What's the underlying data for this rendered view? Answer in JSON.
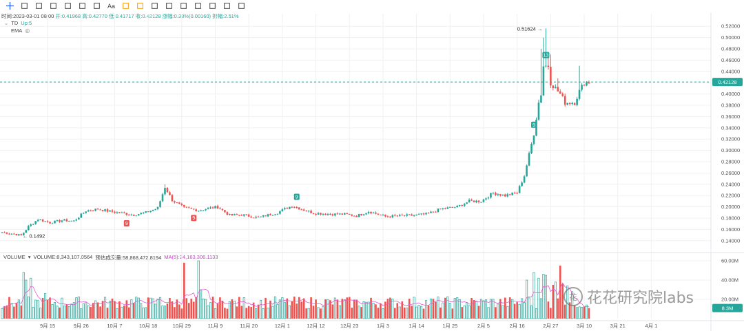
{
  "toolbar": {
    "icons": [
      "crosshair-icon",
      "trendline-icon",
      "parallel-channel-icon",
      "rectangle-icon",
      "fib-lines-icon",
      "pattern-icon",
      "ruler-icon",
      "text-icon",
      "brush-icon",
      "brush2-icon",
      "pencil-icon",
      "magnet-icon",
      "stats-icon",
      "lock-icon",
      "copy-icon",
      "clear-icon",
      "trash-icon"
    ]
  },
  "ohlc": {
    "time_label": "时间:2023-03-01 08:00",
    "open": "开:0.41968",
    "high": "高:0.42770",
    "low": "低:0.41717",
    "close": "收:0.42128",
    "change": "涨幅:0.38%(0.00160)",
    "amplitude": "振幅:2.51%"
  },
  "indicators": {
    "td_label": "TD",
    "td_value": "Up:5",
    "ema_label": "EMA"
  },
  "volume_legend": {
    "label": "VOLUME",
    "value": "VOLUME:8,343,107.0564",
    "estimate": "预估成交量:58,868,472.8194",
    "ma": "MA(5):24,163,306.1133"
  },
  "watermark": {
    "text": "花花研究院labs",
    "logo": "花"
  },
  "colors": {
    "up": "#26a69a",
    "down": "#ef5350",
    "grid": "#f0f0f0",
    "ma": "#e05bd0",
    "price_line": "#26a69a"
  },
  "chart_data": [
    {
      "type": "candlestick",
      "title": "",
      "ylim": [
        0.13,
        0.53
      ],
      "y_ticks": [
        0.14,
        0.16,
        0.18,
        0.2,
        0.22,
        0.24,
        0.26,
        0.28,
        0.3,
        0.32,
        0.34,
        0.36,
        0.38,
        0.4,
        0.42,
        0.44,
        0.46,
        0.48,
        0.5,
        0.52
      ],
      "y_tick_labels": [
        "0.14000",
        "0.16000",
        "0.18000",
        "0.20000",
        "0.22000",
        "0.24000",
        "0.26000",
        "0.28000",
        "0.30000",
        "0.32000",
        "0.34000",
        "0.36000",
        "0.38000",
        "0.40000",
        "0.42000",
        "0.44000",
        "0.46000",
        "0.48000",
        "0.50000",
        "0.52000"
      ],
      "x_tick_labels": [
        "9月 15",
        "9月 26",
        "10月 7",
        "10月 18",
        "10月 29",
        "11月 9",
        "11月 20",
        "12月 1",
        "12月 12",
        "12月 23",
        "1月 3",
        "1月 14",
        "1月 25",
        "2月 5",
        "2月 16",
        "2月 27",
        "3月 10",
        "3月 21",
        "4月 1"
      ],
      "last_price": 0.42128,
      "last_price_label": "0.42128",
      "high_annotation": "0.51624",
      "high_value": 0.51624,
      "low_annotation": "0.1492",
      "low_value": 0.1492,
      "td_markers": [
        {
          "label": "9",
          "day": 52,
          "side": "below",
          "dir": "down"
        },
        {
          "label": "9",
          "day": 80,
          "side": "below",
          "dir": "down"
        },
        {
          "label": "9",
          "day": 123,
          "side": "above",
          "dir": "up"
        },
        {
          "label": "9",
          "day": 222,
          "side": "above",
          "dir": "up"
        },
        {
          "label": "13",
          "day": 227,
          "side": "above",
          "dir": "up"
        }
      ],
      "anchors": [
        [
          0,
          0.155
        ],
        [
          5,
          0.152
        ],
        [
          8,
          0.1492
        ],
        [
          11,
          0.165
        ],
        [
          15,
          0.178
        ],
        [
          20,
          0.172
        ],
        [
          25,
          0.176
        ],
        [
          30,
          0.175
        ],
        [
          35,
          0.193
        ],
        [
          40,
          0.196
        ],
        [
          45,
          0.192
        ],
        [
          50,
          0.189
        ],
        [
          55,
          0.186
        ],
        [
          60,
          0.19
        ],
        [
          65,
          0.198
        ],
        [
          68,
          0.235
        ],
        [
          71,
          0.212
        ],
        [
          76,
          0.198
        ],
        [
          82,
          0.194
        ],
        [
          90,
          0.2
        ],
        [
          95,
          0.185
        ],
        [
          100,
          0.186
        ],
        [
          107,
          0.181
        ],
        [
          115,
          0.19
        ],
        [
          121,
          0.202
        ],
        [
          125,
          0.196
        ],
        [
          130,
          0.189
        ],
        [
          138,
          0.187
        ],
        [
          143,
          0.187
        ],
        [
          148,
          0.184
        ],
        [
          153,
          0.192
        ],
        [
          160,
          0.183
        ],
        [
          165,
          0.184
        ],
        [
          172,
          0.185
        ],
        [
          177,
          0.187
        ],
        [
          183,
          0.196
        ],
        [
          190,
          0.2
        ],
        [
          195,
          0.21
        ],
        [
          200,
          0.21
        ],
        [
          205,
          0.225
        ],
        [
          210,
          0.22
        ],
        [
          215,
          0.225
        ],
        [
          218,
          0.255
        ],
        [
          222,
          0.33
        ],
        [
          224,
          0.385
        ],
        [
          225,
          0.4
        ],
        [
          226,
          0.45
        ],
        [
          228,
          0.45
        ],
        [
          229,
          0.42
        ],
        [
          231,
          0.41
        ],
        [
          233,
          0.4
        ],
        [
          235,
          0.385
        ],
        [
          237,
          0.385
        ],
        [
          239,
          0.385
        ],
        [
          241,
          0.405
        ],
        [
          243,
          0.42
        ],
        [
          245,
          0.421
        ]
      ],
      "spikes": [
        [
          68,
          0.24
        ],
        [
          89,
          0.198
        ],
        [
          224,
          0.39
        ],
        [
          225,
          0.48
        ],
        [
          226,
          0.5
        ],
        [
          227,
          0.51624
        ],
        [
          228,
          0.47
        ],
        [
          229,
          0.47
        ],
        [
          232,
          0.428
        ],
        [
          241,
          0.45
        ]
      ]
    },
    {
      "type": "bar",
      "title": "VOLUME",
      "ylim": [
        0,
        65000000
      ],
      "y_ticks": [
        20000000,
        40000000,
        60000000
      ],
      "y_tick_labels": [
        "20.00M",
        "40.00M",
        "60.00M"
      ],
      "last_volume_label": "8.3M",
      "ma_period": 5,
      "base_volume": 17000000,
      "peaks": [
        [
          9,
          48000000
        ],
        [
          10,
          40000000
        ],
        [
          12,
          42000000
        ],
        [
          18,
          26000000
        ],
        [
          66,
          22000000
        ],
        [
          76,
          58000000
        ],
        [
          82,
          60000000
        ],
        [
          83,
          30000000
        ],
        [
          219,
          40000000
        ],
        [
          222,
          48000000
        ],
        [
          224,
          42000000
        ],
        [
          226,
          46000000
        ],
        [
          227,
          45000000
        ],
        [
          230,
          35000000
        ],
        [
          231,
          38000000
        ],
        [
          233,
          55000000
        ],
        [
          234,
          36000000
        ],
        [
          236,
          34000000
        ],
        [
          238,
          28000000
        ]
      ]
    }
  ]
}
